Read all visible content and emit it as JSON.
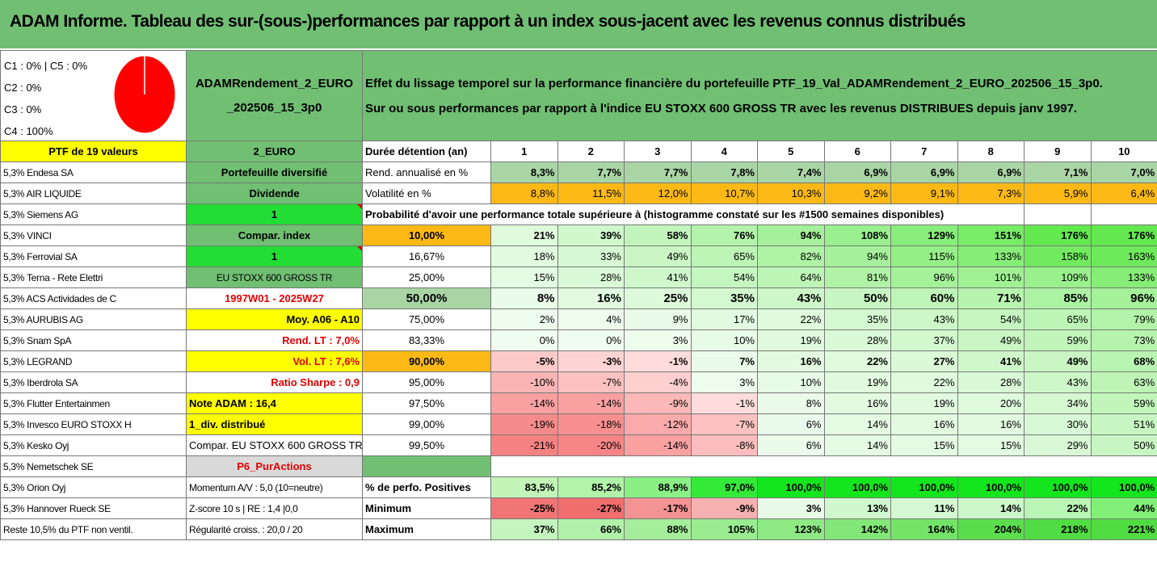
{
  "title": "ADAM Informe. Tableau des sur-(sous-)performances par rapport à un index sous-jacent avec les revenus connus distribués",
  "pie": {
    "labels": [
      "C1 : 0% | C5 : 0%",
      "C2 : 0%",
      "C3 : 0%",
      "C4 : 100%"
    ],
    "color": "#ff0000",
    "share_c4": 1.0
  },
  "fund_name_line1": "ADAMRendement_2_EURO",
  "fund_name_line2": "_202506_15_3p0",
  "description_line1": "Effet du lissage temporel sur la performance financière du portefeuille PTF_19_Val_ADAMRendement_2_EURO_202506_15_3p0.",
  "description_line2": "Sur ou sous performances par rapport à l'indice EU STOXX 600 GROSS TR avec les revenus DISTRIBUES depuis janv 1997.",
  "ptf_label": "PTF de 19 valeurs",
  "ptf_code": "2_EURO",
  "duration_label": "Durée détention (an)",
  "years": [
    "1",
    "2",
    "3",
    "4",
    "5",
    "6",
    "7",
    "8",
    "9",
    "10"
  ],
  "holdings": [
    "5,3% Endesa SA",
    "5,3% AIR LIQUIDE",
    "5,3% Siemens AG",
    "5,3% VINCI",
    "5,3% Ferrovial SA",
    "5,3% Terna - Rete Elettri",
    "5,3% ACS Actividades de C",
    "5,3% AURUBIS AG",
    "5,3% Snam SpA",
    "5,3% LEGRAND",
    "5,3% Iberdrola SA",
    "5,3% Flutter Entertainmen",
    "5,3% Invesco EURO STOXX H",
    "5,3% Kesko Oyj",
    "5,3% Nemetschek SE",
    "5,3% Orion Oyj",
    "5,3% Hannover Rueck SE",
    "Reste 10,5% du PTF non ventil."
  ],
  "info": [
    "Portefeuille diversifié",
    "Dividende",
    "1",
    "Compar. index",
    "1",
    "EU STOXX 600 GROSS TR",
    "1997W01 - 2025W27",
    "Moy. A06 - A10",
    "Rend. LT : 7,0%",
    "Vol. LT : 7,6%",
    "Ratio Sharpe : 0,9",
    "Note ADAM : 16,4",
    "1_div. distribué",
    "Compar. EU STOXX 600 GROSS TR",
    "P6_PurActions",
    "Momentum A/V : 5,0 (10=neutre)",
    "Z-score 10 s | RE : 1,4 |0,0",
    "Régularité croiss. : 20,0 / 20"
  ],
  "rend_label": "Rend. annualisé en %",
  "rend": [
    "8,3%",
    "7,7%",
    "7,7%",
    "7,8%",
    "7,4%",
    "6,9%",
    "6,9%",
    "6,9%",
    "7,1%",
    "7,0%"
  ],
  "vol_label": "Volatilité en %",
  "vol": [
    "8,8%",
    "11,5%",
    "12,0%",
    "10,7%",
    "10,3%",
    "9,2%",
    "9,1%",
    "7,3%",
    "5,9%",
    "6,4%"
  ],
  "prob_title": "Probabilité d'avoir une performance totale supérieure à (histogramme constaté sur les #1500 semaines disponibles)",
  "quantiles": [
    {
      "p": "10,00%",
      "v": [
        "21%",
        "39%",
        "58%",
        "76%",
        "94%",
        "108%",
        "129%",
        "151%",
        "176%",
        "176%"
      ]
    },
    {
      "p": "16,67%",
      "v": [
        "18%",
        "33%",
        "49%",
        "65%",
        "82%",
        "94%",
        "115%",
        "133%",
        "158%",
        "163%"
      ]
    },
    {
      "p": "25,00%",
      "v": [
        "15%",
        "28%",
        "41%",
        "54%",
        "64%",
        "81%",
        "96%",
        "101%",
        "109%",
        "133%"
      ]
    },
    {
      "p": "50,00%",
      "v": [
        "8%",
        "16%",
        "25%",
        "35%",
        "43%",
        "50%",
        "60%",
        "71%",
        "85%",
        "96%"
      ]
    },
    {
      "p": "75,00%",
      "v": [
        "2%",
        "4%",
        "9%",
        "17%",
        "22%",
        "35%",
        "43%",
        "54%",
        "65%",
        "79%"
      ]
    },
    {
      "p": "83,33%",
      "v": [
        "0%",
        "0%",
        "3%",
        "10%",
        "19%",
        "28%",
        "37%",
        "49%",
        "59%",
        "73%"
      ]
    },
    {
      "p": "90,00%",
      "v": [
        "-5%",
        "-3%",
        "-1%",
        "7%",
        "16%",
        "22%",
        "27%",
        "41%",
        "49%",
        "68%"
      ]
    },
    {
      "p": "95,00%",
      "v": [
        "-10%",
        "-7%",
        "-4%",
        "3%",
        "10%",
        "19%",
        "22%",
        "28%",
        "43%",
        "63%"
      ]
    },
    {
      "p": "97,50%",
      "v": [
        "-14%",
        "-14%",
        "-9%",
        "-1%",
        "8%",
        "16%",
        "19%",
        "20%",
        "34%",
        "59%"
      ]
    },
    {
      "p": "99,00%",
      "v": [
        "-19%",
        "-18%",
        "-12%",
        "-7%",
        "6%",
        "14%",
        "16%",
        "16%",
        "30%",
        "51%"
      ]
    },
    {
      "p": "99,50%",
      "v": [
        "-21%",
        "-20%",
        "-14%",
        "-8%",
        "6%",
        "14%",
        "15%",
        "15%",
        "29%",
        "50%"
      ]
    }
  ],
  "pos_label": "% de perfo. Positives",
  "pos": [
    "83,5%",
    "85,2%",
    "88,9%",
    "97,0%",
    "100,0%",
    "100,0%",
    "100,0%",
    "100,0%",
    "100,0%",
    "100,0%"
  ],
  "min_label": "Minimum",
  "min": [
    "-25%",
    "-27%",
    "-17%",
    "-9%",
    "3%",
    "13%",
    "11%",
    "14%",
    "22%",
    "44%"
  ],
  "max_label": "Maximum",
  "max": [
    "37%",
    "66%",
    "88%",
    "105%",
    "123%",
    "142%",
    "164%",
    "204%",
    "218%",
    "221%"
  ]
}
